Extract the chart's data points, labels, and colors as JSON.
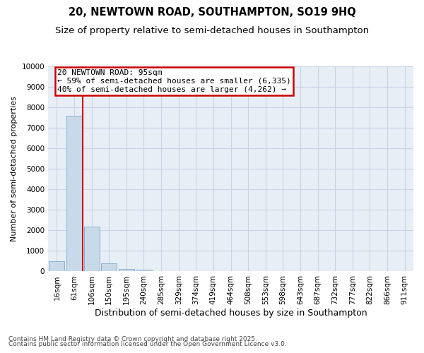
{
  "title_line1": "20, NEWTOWN ROAD, SOUTHAMPTON, SO19 9HQ",
  "title_line2": "Size of property relative to semi-detached houses in Southampton",
  "xlabel": "Distribution of semi-detached houses by size in Southampton",
  "ylabel": "Number of semi-detached properties",
  "footer_line1": "Contains HM Land Registry data © Crown copyright and database right 2025.",
  "footer_line2": "Contains public sector information licensed under the Open Government Licence v3.0.",
  "annotation_line1": "20 NEWTOWN ROAD: 95sqm",
  "annotation_line2": "← 59% of semi-detached houses are smaller (6,335)",
  "annotation_line3": "40% of semi-detached houses are larger (4,262) →",
  "bar_categories": [
    "16sqm",
    "61sqm",
    "106sqm",
    "150sqm",
    "195sqm",
    "240sqm",
    "285sqm",
    "329sqm",
    "374sqm",
    "419sqm",
    "464sqm",
    "508sqm",
    "553sqm",
    "598sqm",
    "643sqm",
    "687sqm",
    "732sqm",
    "777sqm",
    "822sqm",
    "866sqm",
    "911sqm"
  ],
  "bar_values": [
    500,
    7600,
    2200,
    380,
    120,
    90,
    0,
    0,
    0,
    0,
    0,
    0,
    0,
    0,
    0,
    0,
    0,
    0,
    0,
    0,
    0
  ],
  "bar_color": "#c8d9ea",
  "bar_edge_color": "#8ab4d0",
  "vline_color": "#cc0000",
  "vline_x": 1.5,
  "ylim": [
    0,
    10000
  ],
  "yticks": [
    0,
    1000,
    2000,
    3000,
    4000,
    5000,
    6000,
    7000,
    8000,
    9000,
    10000
  ],
  "ax_facecolor": "#e8eef6",
  "background_color": "#ffffff",
  "grid_color": "#c8d4e4",
  "annotation_box_color": "#cc0000",
  "title_fontsize": 10.5,
  "subtitle_fontsize": 9.5,
  "ylabel_fontsize": 8,
  "xlabel_fontsize": 9,
  "tick_fontsize": 7.5,
  "footer_fontsize": 6.5,
  "annotation_fontsize": 8
}
